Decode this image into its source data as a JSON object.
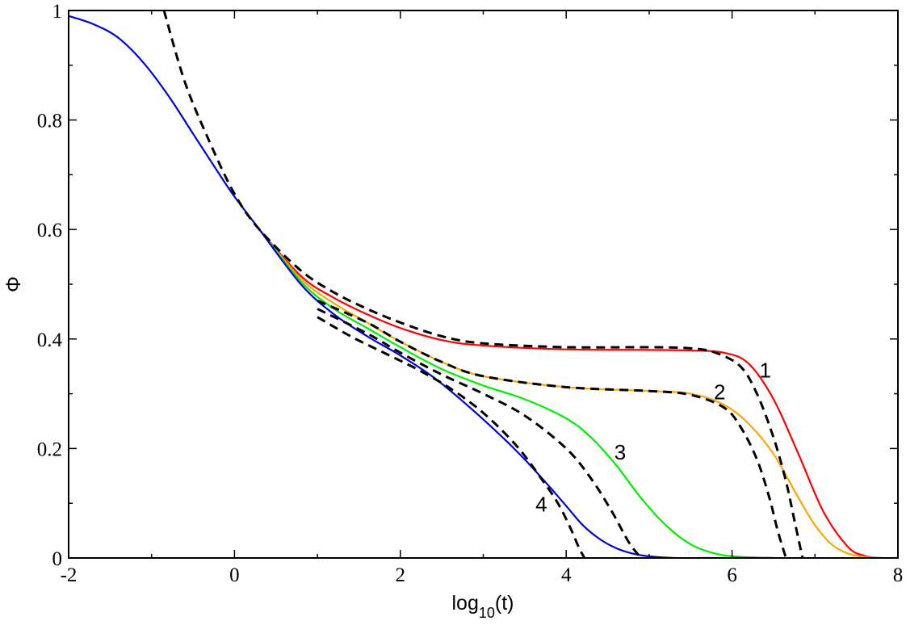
{
  "chart_data": {
    "type": "line",
    "xlabel": "log10(t)",
    "xlabel_parts": {
      "base": "log",
      "sub": "10",
      "rest": "(t)"
    },
    "ylabel": "Φ",
    "xlim": [
      -2,
      8
    ],
    "ylim": [
      0,
      1
    ],
    "x_ticks": [
      -2,
      0,
      2,
      4,
      6,
      8
    ],
    "x_tick_labels": [
      "-2",
      "0",
      "2",
      "4",
      "6",
      "8"
    ],
    "y_ticks": [
      0,
      0.2,
      0.4,
      0.6,
      0.8,
      1
    ],
    "y_tick_labels": [
      "0",
      "0.2",
      "0.4",
      "0.6",
      "0.8",
      "1"
    ],
    "grid": false,
    "legend": "none",
    "curve_labels": [
      {
        "text": "1",
        "x": 6.4,
        "y": 0.33
      },
      {
        "text": "2",
        "x": 5.85,
        "y": 0.29
      },
      {
        "text": "3",
        "x": 4.65,
        "y": 0.18
      },
      {
        "text": "4",
        "x": 3.7,
        "y": 0.085
      }
    ],
    "series": [
      {
        "id": "curve-1-solid",
        "color": "#ff0000",
        "dash": false,
        "x": [
          0.3,
          0.8,
          1.2,
          1.6,
          2.0,
          2.5,
          3.0,
          4.0,
          5.0,
          5.5,
          5.9,
          6.2,
          6.5,
          6.8,
          7.1,
          7.4,
          7.6,
          7.8,
          8.0
        ],
        "y": [
          0.6,
          0.515,
          0.475,
          0.445,
          0.42,
          0.398,
          0.388,
          0.381,
          0.38,
          0.379,
          0.375,
          0.355,
          0.29,
          0.19,
          0.085,
          0.02,
          0.004,
          0.0,
          0.0
        ]
      },
      {
        "id": "curve-2-solid",
        "color": "#ffa500",
        "dash": false,
        "x": [
          0.3,
          0.8,
          1.2,
          1.6,
          2.0,
          2.5,
          3.0,
          4.0,
          5.0,
          5.5,
          5.9,
          6.2,
          6.5,
          6.8,
          7.0,
          7.2,
          7.4,
          7.6,
          7.8,
          8.0
        ],
        "y": [
          0.6,
          0.51,
          0.465,
          0.43,
          0.395,
          0.358,
          0.332,
          0.312,
          0.305,
          0.3,
          0.28,
          0.245,
          0.19,
          0.11,
          0.06,
          0.025,
          0.008,
          0.002,
          0.0,
          0.0
        ]
      },
      {
        "id": "curve-3-solid",
        "color": "#00ee00",
        "dash": false,
        "x": [
          0.3,
          0.8,
          1.2,
          1.6,
          2.0,
          2.5,
          3.0,
          3.5,
          4.0,
          4.3,
          4.6,
          4.9,
          5.2,
          5.5,
          5.8,
          6.1,
          6.5,
          7.0
        ],
        "y": [
          0.6,
          0.505,
          0.455,
          0.42,
          0.385,
          0.345,
          0.315,
          0.29,
          0.255,
          0.22,
          0.17,
          0.11,
          0.06,
          0.025,
          0.008,
          0.002,
          0.0,
          0.0
        ]
      },
      {
        "id": "curve-4-solid",
        "color": "#0000dd",
        "dash": false,
        "x": [
          -2.0,
          -1.7,
          -1.4,
          -1.1,
          -0.8,
          -0.5,
          -0.2,
          0.0,
          0.3,
          0.8,
          1.2,
          1.6,
          2.0,
          2.4,
          2.8,
          3.2,
          3.5,
          3.8,
          4.0,
          4.2,
          4.4,
          4.6,
          4.8,
          5.0,
          5.3,
          5.7,
          6.5
        ],
        "y": [
          0.99,
          0.975,
          0.95,
          0.905,
          0.845,
          0.775,
          0.705,
          0.66,
          0.6,
          0.5,
          0.445,
          0.405,
          0.37,
          0.33,
          0.28,
          0.225,
          0.18,
          0.13,
          0.095,
          0.06,
          0.035,
          0.018,
          0.008,
          0.003,
          0.0,
          0.0,
          0.0
        ]
      },
      {
        "id": "curve-1-dashed",
        "color": "#000000",
        "dash": true,
        "x": [
          -0.85,
          -0.6,
          -0.3,
          0.0,
          0.3,
          0.8,
          1.2,
          1.6,
          2.0,
          2.5,
          3.0,
          4.0,
          5.0,
          5.5,
          5.8,
          6.1,
          6.3,
          6.5,
          6.65,
          6.75,
          6.85
        ],
        "y": [
          1.0,
          0.87,
          0.76,
          0.665,
          0.6,
          0.525,
          0.485,
          0.455,
          0.43,
          0.405,
          0.392,
          0.385,
          0.385,
          0.383,
          0.375,
          0.35,
          0.3,
          0.22,
          0.14,
          0.07,
          0.0
        ]
      },
      {
        "id": "curve-2-dashed",
        "color": "#000000",
        "dash": true,
        "x": [
          1.0,
          1.6,
          2.0,
          2.5,
          3.0,
          4.0,
          5.0,
          5.5,
          5.9,
          6.1,
          6.3,
          6.45,
          6.55,
          6.65
        ],
        "y": [
          0.47,
          0.43,
          0.395,
          0.358,
          0.332,
          0.312,
          0.305,
          0.298,
          0.275,
          0.24,
          0.18,
          0.11,
          0.05,
          0.0
        ]
      },
      {
        "id": "curve-3-dashed",
        "color": "#000000",
        "dash": true,
        "x": [
          1.0,
          1.6,
          2.0,
          2.5,
          3.0,
          3.5,
          4.0,
          4.3,
          4.55,
          4.75,
          4.9
        ],
        "y": [
          0.455,
          0.41,
          0.375,
          0.335,
          0.3,
          0.26,
          0.2,
          0.145,
          0.085,
          0.03,
          0.0
        ]
      },
      {
        "id": "curve-4-dashed",
        "color": "#000000",
        "dash": true,
        "x": [
          1.0,
          1.4,
          1.8,
          2.2,
          2.6,
          3.0,
          3.4,
          3.7,
          3.9,
          4.05,
          4.15,
          4.22
        ],
        "y": [
          0.44,
          0.405,
          0.375,
          0.345,
          0.31,
          0.265,
          0.205,
          0.145,
          0.1,
          0.055,
          0.02,
          0.0
        ]
      }
    ]
  }
}
